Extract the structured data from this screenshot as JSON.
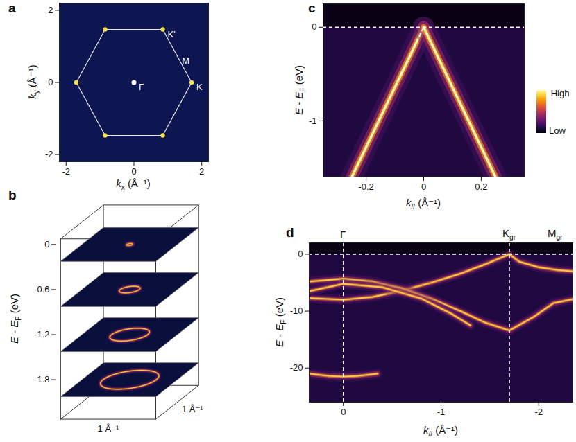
{
  "chart_data": [
    {
      "panel": "a",
      "type": "zone",
      "xlabel": "kx (Å⁻¹)",
      "ylabel": "ky (Å⁻¹)",
      "xlim": [
        -2.2,
        2.2
      ],
      "ylim": [
        -2.2,
        2.2
      ],
      "xticks": [
        -2,
        0,
        2
      ],
      "yticks": [
        -2,
        0,
        2
      ],
      "hexagon": {
        "kx": [
          1.7,
          0.85,
          -0.85,
          -1.7,
          -0.85,
          0.85
        ],
        "ky": [
          0,
          1.47,
          1.47,
          0,
          -1.47,
          -1.47
        ]
      },
      "color": "#f4e04d",
      "points": [
        {
          "label": "Γ",
          "kx": 0,
          "ky": 0,
          "marker": "dot"
        },
        {
          "label": "K",
          "kx": 1.7,
          "ky": 0
        },
        {
          "label": "K'",
          "kx": 0.85,
          "ky": 1.47
        },
        {
          "label": "M",
          "kx": 1.275,
          "ky": 0.735
        }
      ]
    },
    {
      "panel": "b",
      "type": "slices",
      "zlabel": "E - EF (eV)",
      "zlim": [
        -2.1,
        0.3
      ],
      "zticks": [
        0,
        -0.6,
        -1.2,
        -1.8
      ],
      "energies": [
        0,
        -0.6,
        -1.2,
        -1.8
      ],
      "radii": [
        0.03,
        0.1,
        0.19,
        0.28
      ],
      "k_extent": 1,
      "k_extent_labels": [
        "1 Å⁻¹",
        "1 Å⁻¹"
      ],
      "color": "#f7d44a"
    },
    {
      "panel": "c",
      "type": "dispersion",
      "xlabel": "k// (Å⁻¹)",
      "ylabel": "E - EF (eV)",
      "xlim": [
        -0.35,
        0.35
      ],
      "ylim": [
        -1.6,
        0.25
      ],
      "xticks": [
        -0.2,
        0,
        0.2
      ],
      "yticks": [
        0,
        -1
      ],
      "fermi_level": 0,
      "color": "#f7e06a",
      "bands": [
        {
          "k": [
            -0.25,
            0
          ],
          "E": [
            -1.6,
            0
          ],
          "line_style": "dashed"
        },
        {
          "k": [
            0,
            0.25
          ],
          "E": [
            0,
            -1.6
          ],
          "line_style": "dashed"
        }
      ],
      "colorbar": {
        "high": "High",
        "low": "Low"
      }
    },
    {
      "panel": "d",
      "type": "dispersion",
      "xlabel": "k// (Å⁻¹)",
      "ylabel": "E - EF (eV)",
      "xlim": [
        0.35,
        -2.35
      ],
      "ylim": [
        -26,
        2
      ],
      "xticks": [
        0,
        -1,
        -2
      ],
      "yticks": [
        0,
        -10,
        -20
      ],
      "fermi_level": 0,
      "color": "#f2cf4a",
      "marks": [
        {
          "label": "Γ",
          "k": 0,
          "line_style": "dashed"
        },
        {
          "label": "Kgr",
          "k": -1.7,
          "line_style": "dashed"
        },
        {
          "label": "Mgr",
          "k": -2.17
        }
      ],
      "bands": [
        {
          "k": [
            0.35,
            0,
            -0.3,
            -0.6,
            -0.9,
            -1.2,
            -1.45,
            -1.7,
            -1.8,
            -2.0,
            -2.2,
            -2.35
          ],
          "E": [
            -7.7,
            -8.0,
            -7.5,
            -6.4,
            -5.0,
            -3.4,
            -1.8,
            0,
            -1.3,
            -2.3,
            -2.8,
            -3.0
          ]
        },
        {
          "k": [
            0.35,
            0,
            -0.3,
            -0.6,
            -0.9,
            -1.2,
            -1.45,
            -1.7,
            -1.95,
            -2.15,
            -2.35
          ],
          "E": [
            -4.8,
            -4.3,
            -4.8,
            -6.0,
            -7.8,
            -10.0,
            -12.0,
            -13.4,
            -11.0,
            -8.6,
            -7.9
          ]
        },
        {
          "k": [
            0.35,
            0,
            -0.4,
            -0.8,
            -1.1,
            -1.3
          ],
          "E": [
            -6.5,
            -5.2,
            -5.8,
            -7.8,
            -10.4,
            -12.5
          ]
        },
        {
          "k": [
            0.35,
            0.15,
            0,
            -0.15,
            -0.35
          ],
          "E": [
            -21.0,
            -21.4,
            -21.5,
            -21.4,
            -21.0
          ]
        }
      ]
    }
  ]
}
